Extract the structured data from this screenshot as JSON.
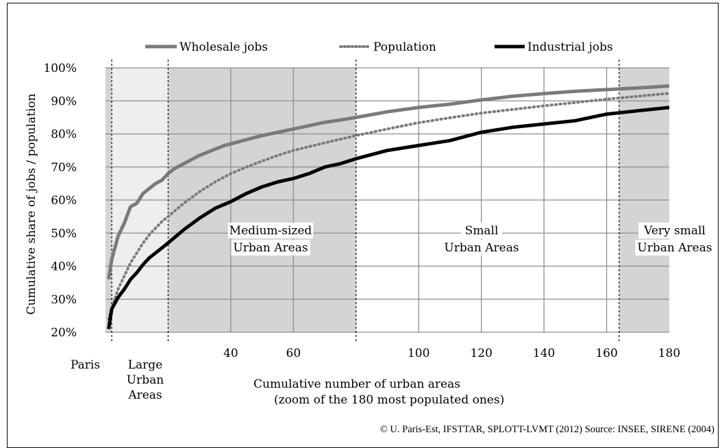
{
  "chart_data": {
    "type": "line",
    "title": "",
    "xlabel": "Cumulative number of urban areas",
    "xlabel_line2": "(zoom of the 180 most populated ones)",
    "ylabel": "Cumulative share of jobs / population",
    "ylim": [
      20,
      100
    ],
    "xlim": [
      0,
      180
    ],
    "grid": true,
    "legend_position": "top",
    "y_ticks": [
      "20%",
      "30%",
      "40%",
      "50%",
      "60%",
      "70%",
      "80%",
      "90%",
      "100%"
    ],
    "x_ticks": [
      "40",
      "60",
      "100",
      "120",
      "140",
      "160",
      "180"
    ],
    "x_extra_labels": [
      "Paris"
    ],
    "zones": [
      {
        "name": "Large Urban Areas",
        "lines": [
          "Large",
          "Urban",
          "Areas"
        ],
        "from": 2,
        "to": 20,
        "shade": "#eeeeee"
      },
      {
        "name": "Medium-sized Urban Areas",
        "lines": [
          "Medium-sized",
          "Urban Areas"
        ],
        "from": 20,
        "to": 80,
        "shade": "#d4d4d4"
      },
      {
        "name": "Small Urban Areas",
        "lines": [
          "Small",
          "Urban Areas"
        ],
        "from": 80,
        "to": 164,
        "shade": "#ffffff"
      },
      {
        "name": "Very small Urban Areas",
        "lines": [
          "Very small",
          "Urban Areas"
        ],
        "from": 164,
        "to": 180,
        "shade": "#d4d4d4"
      }
    ],
    "series": [
      {
        "name": "Wholesale jobs",
        "style": "solid",
        "color": "#7a7a7a",
        "x": [
          1,
          2,
          4,
          6,
          8,
          9,
          10,
          12,
          14,
          16,
          18,
          20,
          22,
          24,
          26,
          28,
          30,
          34,
          38,
          42,
          46,
          50,
          55,
          60,
          65,
          70,
          75,
          80,
          90,
          100,
          110,
          120,
          130,
          140,
          150,
          160,
          170,
          180
        ],
        "y": [
          36,
          42,
          49,
          53,
          58,
          58.5,
          59,
          62,
          63.5,
          65,
          66,
          68,
          69.5,
          70.5,
          71.5,
          72.5,
          73.5,
          75,
          76.5,
          77.5,
          78.5,
          79.5,
          80.5,
          81.5,
          82.5,
          83.5,
          84.2,
          85,
          86.7,
          88,
          89,
          90.3,
          91.4,
          92.2,
          92.9,
          93.4,
          93.9,
          94.5
        ]
      },
      {
        "name": "Population",
        "style": "dotted",
        "color": "#7a7a7a",
        "x": [
          1,
          2,
          4,
          6,
          8,
          10,
          12,
          14,
          16,
          18,
          20,
          25,
          30,
          35,
          40,
          45,
          50,
          55,
          60,
          70,
          80,
          90,
          100,
          110,
          120,
          130,
          140,
          150,
          160,
          170,
          180
        ],
        "y": [
          24,
          27,
          33,
          37,
          41,
          44,
          47,
          49.5,
          51.5,
          53.5,
          55,
          59,
          62.5,
          65.5,
          68,
          70,
          71.8,
          73.5,
          75,
          77.3,
          79.5,
          81.5,
          83.4,
          84.9,
          86.3,
          87.4,
          88.5,
          89.5,
          90.5,
          91.4,
          92.3
        ]
      },
      {
        "name": "Industrial jobs",
        "style": "solid",
        "color": "#000000",
        "x": [
          1,
          2,
          4,
          6,
          8,
          10,
          12,
          14,
          16,
          18,
          20,
          25,
          30,
          35,
          40,
          45,
          50,
          55,
          60,
          65,
          70,
          75,
          80,
          90,
          100,
          110,
          120,
          130,
          140,
          150,
          160,
          170,
          180
        ],
        "y": [
          21,
          27,
          30.5,
          33,
          36,
          38,
          40.5,
          42.5,
          44,
          45.5,
          47,
          51,
          54.5,
          57.5,
          59.5,
          62,
          64,
          65.5,
          66.5,
          68,
          70,
          71,
          72.5,
          75,
          76.5,
          78,
          80.5,
          82,
          83,
          84,
          86,
          87,
          88
        ]
      }
    ]
  },
  "credit": "© U. Paris-Est, IFSTTAR, SPLOTT-LVMT (2012) Source: INSEE, SIRENE (2004)"
}
